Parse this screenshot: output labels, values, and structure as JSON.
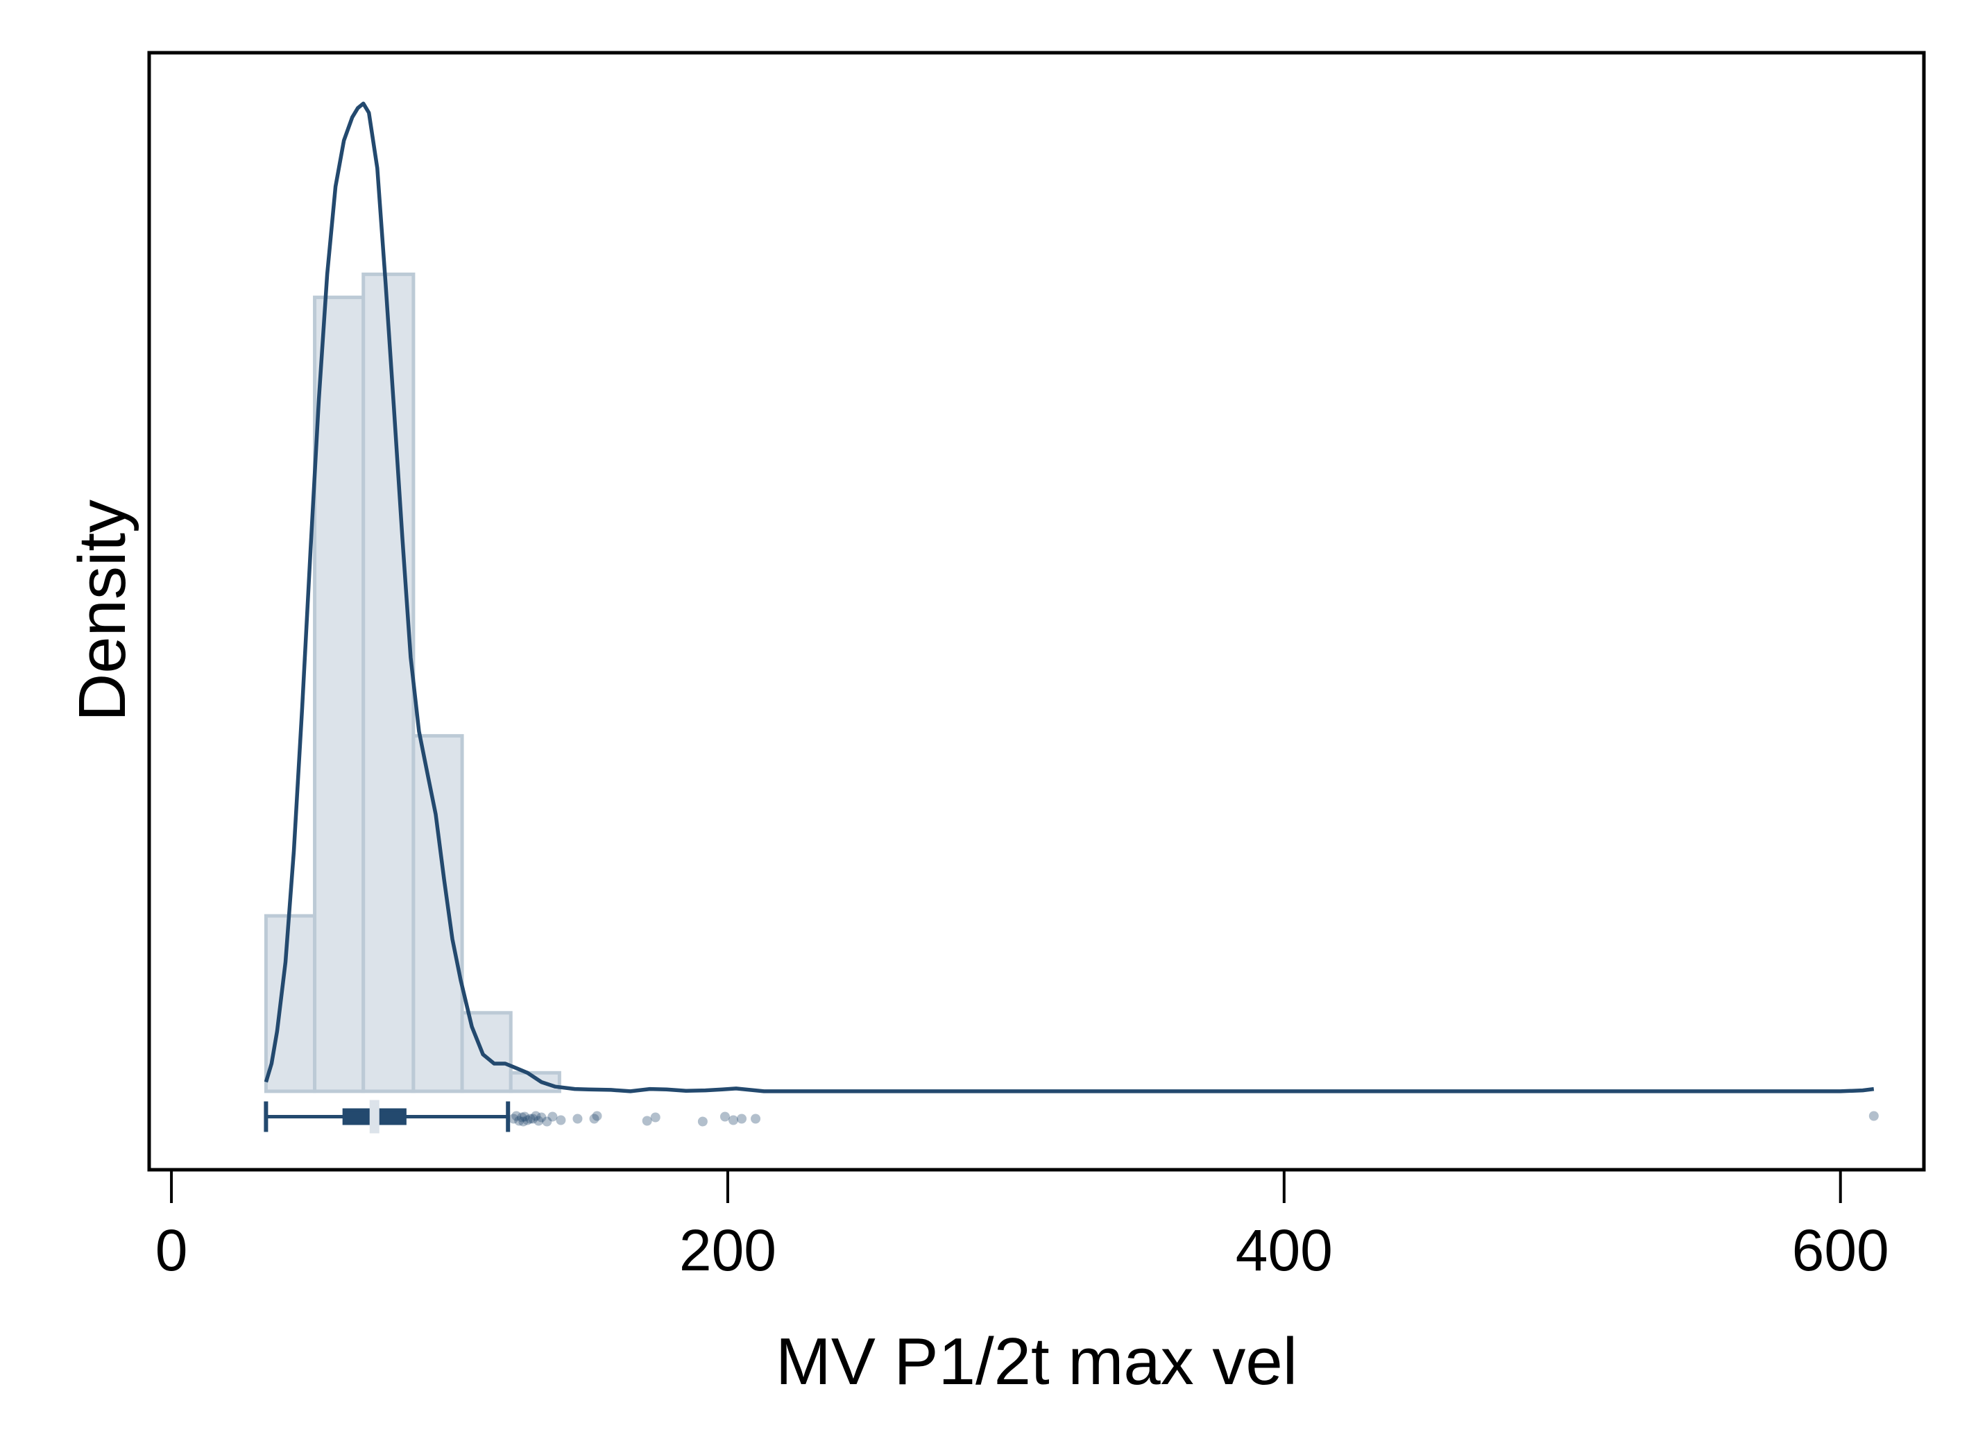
{
  "chart_data": {
    "type": "histogram",
    "xlabel": "MV P1/2t max vel",
    "ylabel": "Density",
    "xlim": [
      -8,
      630
    ],
    "ylim": [
      -0.0017,
      0.0225
    ],
    "y_ticks_shown": false,
    "grid": false,
    "legend": false,
    "x_ticks": [
      0,
      200,
      400,
      600
    ],
    "x_tick_labels": [
      "0",
      "200",
      "400",
      "600"
    ],
    "histogram": {
      "bins": [
        {
          "x0": 34,
          "x1": 51.5,
          "density": 0.0038
        },
        {
          "x0": 51.5,
          "x1": 69,
          "density": 0.0172
        },
        {
          "x0": 69,
          "x1": 87,
          "density": 0.0177
        },
        {
          "x0": 87,
          "x1": 104.5,
          "density": 0.0077
        },
        {
          "x0": 104.5,
          "x1": 122,
          "density": 0.0017
        },
        {
          "x0": 122,
          "x1": 139.5,
          "density": 0.0004
        }
      ],
      "fill": "#dce3ea",
      "edge": "#bccad6"
    },
    "kde": {
      "color": "#23496e",
      "points": [
        [
          34,
          0.0002
        ],
        [
          36,
          0.0006
        ],
        [
          38,
          0.0013
        ],
        [
          41,
          0.0028
        ],
        [
          44,
          0.0052
        ],
        [
          47,
          0.0083
        ],
        [
          50,
          0.0117
        ],
        [
          53,
          0.015
        ],
        [
          56,
          0.0177
        ],
        [
          59,
          0.0196
        ],
        [
          62,
          0.0206
        ],
        [
          65,
          0.0211
        ],
        [
          67,
          0.0213
        ],
        [
          69,
          0.0214
        ],
        [
          71,
          0.0212
        ],
        [
          74,
          0.02
        ],
        [
          77,
          0.0175
        ],
        [
          80,
          0.0148
        ],
        [
          83,
          0.012
        ],
        [
          86,
          0.0094
        ],
        [
          89,
          0.0078
        ],
        [
          92,
          0.0069
        ],
        [
          95,
          0.006
        ],
        [
          98,
          0.0046
        ],
        [
          101,
          0.0033
        ],
        [
          104,
          0.0024
        ],
        [
          108,
          0.0014
        ],
        [
          112,
          0.0008
        ],
        [
          116,
          0.0006
        ],
        [
          120,
          0.0006
        ],
        [
          124,
          0.0005
        ],
        [
          128,
          0.0004
        ],
        [
          133,
          0.0002
        ],
        [
          138,
          0.0001
        ],
        [
          145,
          5e-05
        ],
        [
          150,
          4e-05
        ],
        [
          158,
          3e-05
        ],
        [
          165,
          0.0
        ],
        [
          172,
          5e-05
        ],
        [
          178,
          4e-05
        ],
        [
          185,
          1e-05
        ],
        [
          192,
          2e-05
        ],
        [
          198,
          4e-05
        ],
        [
          203,
          6e-05
        ],
        [
          208,
          3e-05
        ],
        [
          213,
          0.0
        ],
        [
          250,
          0.0
        ],
        [
          300,
          0.0
        ],
        [
          350,
          0.0
        ],
        [
          400,
          0.0
        ],
        [
          450,
          0.0
        ],
        [
          500,
          0.0
        ],
        [
          550,
          0.0
        ],
        [
          600,
          0.0
        ],
        [
          608,
          2e-05
        ],
        [
          612,
          5e-05
        ]
      ]
    },
    "boxplot": {
      "y_level": -0.00055,
      "whisker_low": 34,
      "q1": 62,
      "median": 73,
      "q3": 84,
      "whisker_high": 121,
      "color": "#23496e",
      "median_color": "#dce3ea",
      "outliers": [
        123,
        124,
        125,
        126,
        126.5,
        127,
        128,
        129,
        130,
        131,
        132,
        133,
        135,
        137,
        140,
        146,
        152,
        153,
        171,
        174,
        191,
        199,
        202,
        205,
        210,
        612
      ],
      "outlier_color": "#23496e"
    }
  }
}
